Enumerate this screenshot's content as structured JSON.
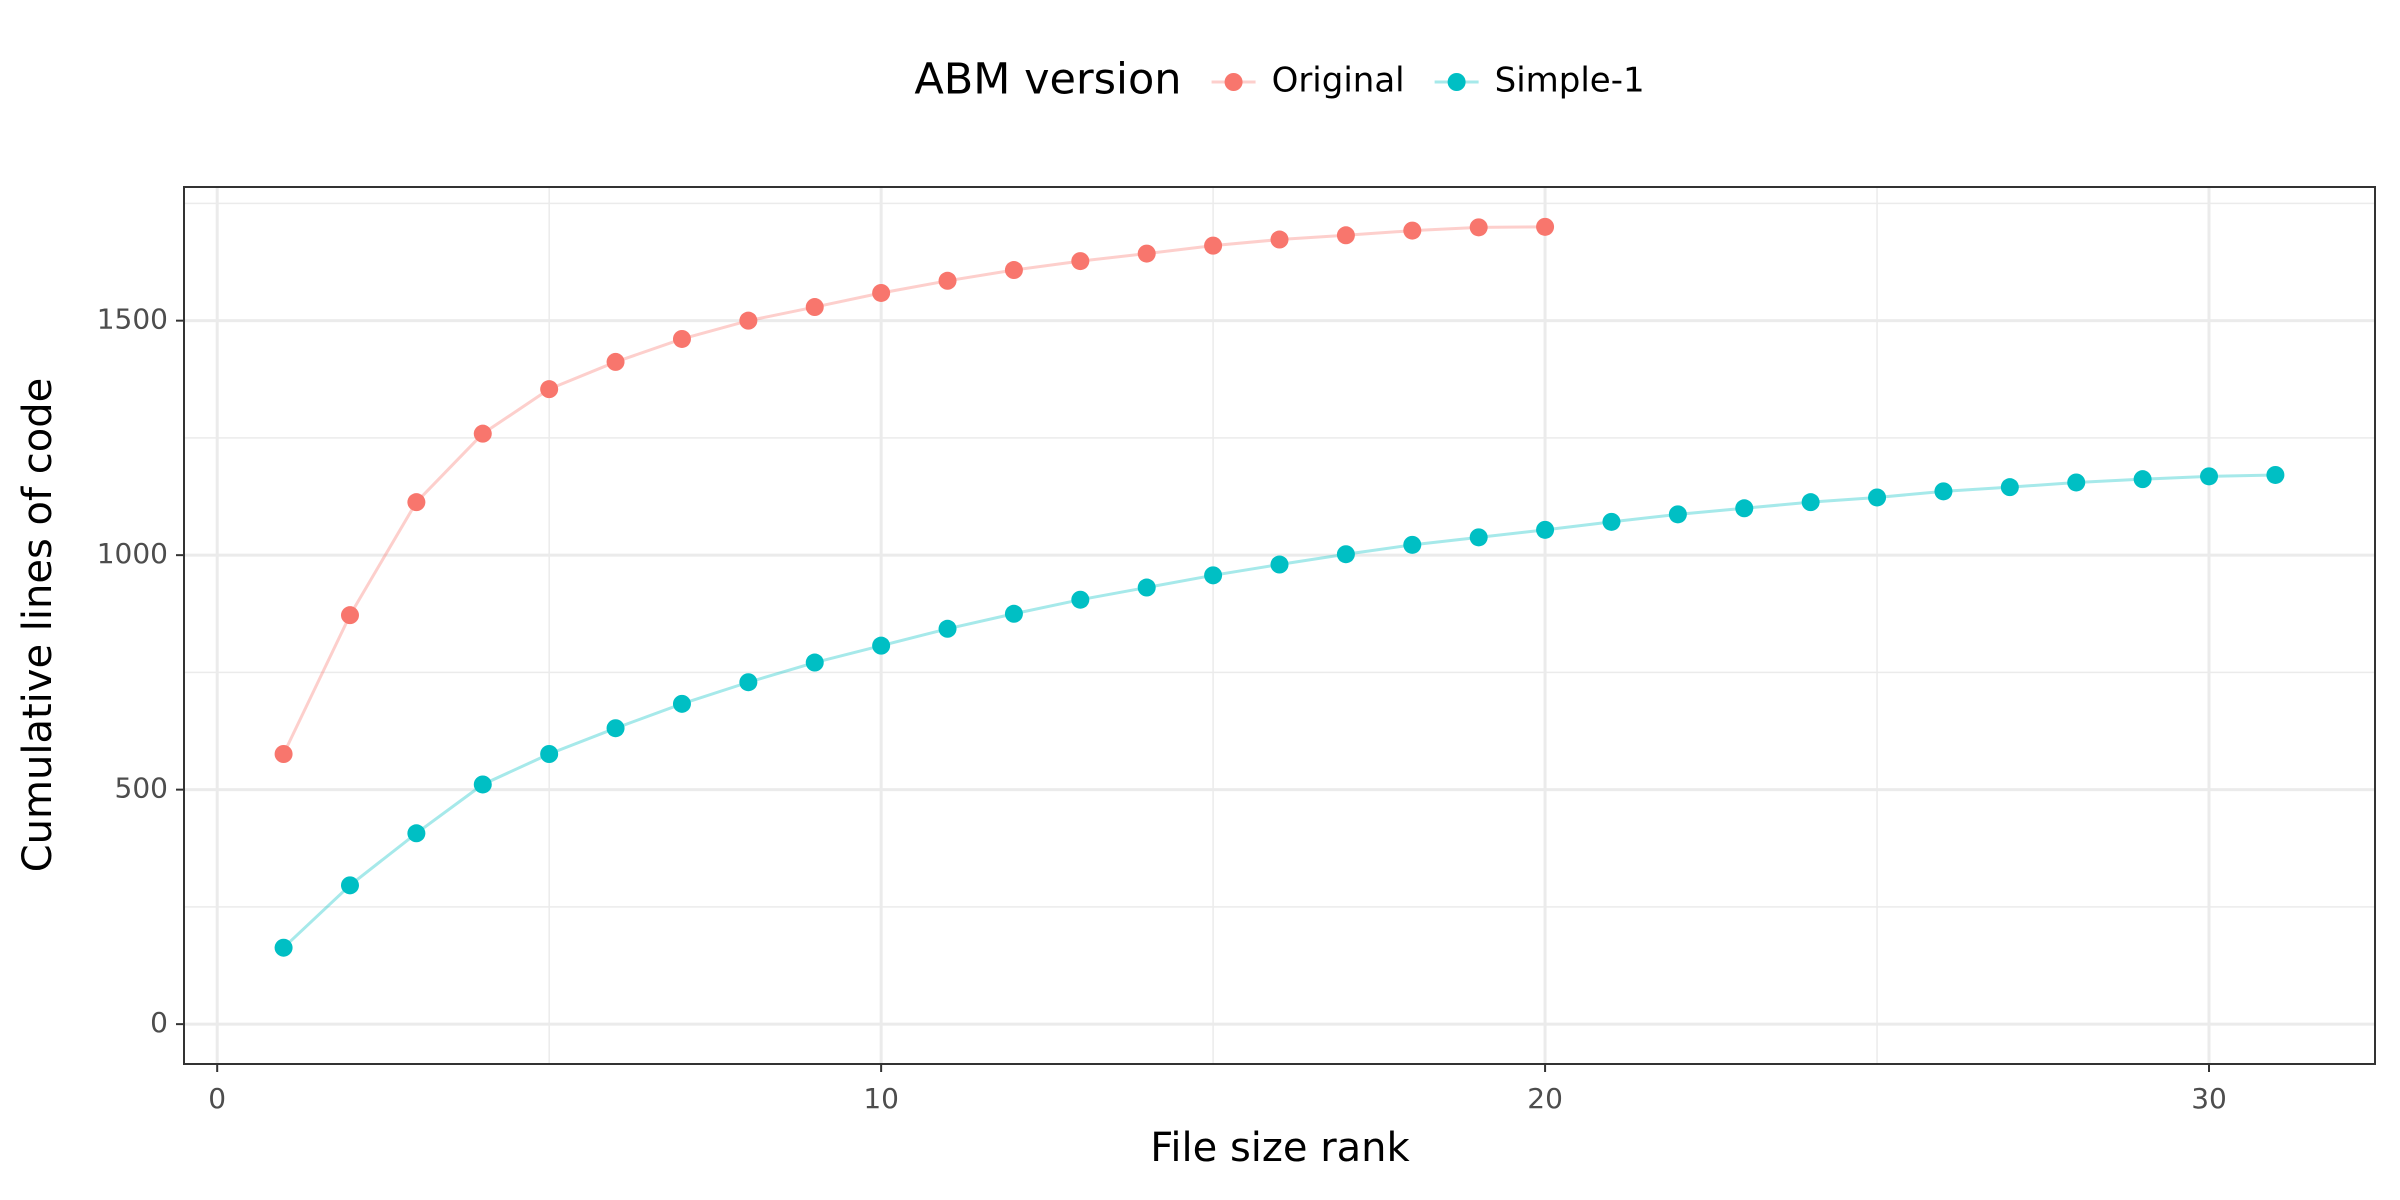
{
  "chart_data": {
    "type": "line",
    "xlabel": "File size rank",
    "ylabel": "Cumulative lines of code",
    "legend_title": "ABM version",
    "legend_position": "top",
    "xlim": [
      -0.5,
      32.5
    ],
    "xticks": [
      0,
      10,
      20,
      30
    ],
    "x_minor_ticks": [
      5,
      15,
      25
    ],
    "ylim": [
      -85,
      1785
    ],
    "yticks": [
      0,
      500,
      1000,
      1500
    ],
    "y_minor_ticks": [
      250,
      750,
      1250,
      1750
    ],
    "grid": true,
    "series": [
      {
        "name": "Original",
        "color": "#F8766D",
        "x": [
          1,
          2,
          3,
          4,
          5,
          6,
          7,
          8,
          9,
          10,
          11,
          12,
          13,
          14,
          15,
          16,
          17,
          18,
          19,
          20
        ],
        "values": [
          576,
          872,
          1113,
          1259,
          1354,
          1412,
          1461,
          1500,
          1529,
          1559,
          1585,
          1608,
          1627,
          1643,
          1660,
          1673,
          1682,
          1692,
          1699,
          1700
        ]
      },
      {
        "name": "Simple-1",
        "color": "#00BFC4",
        "x": [
          1,
          2,
          3,
          4,
          5,
          6,
          7,
          8,
          9,
          10,
          11,
          12,
          13,
          14,
          15,
          16,
          17,
          18,
          19,
          20,
          21,
          22,
          23,
          24,
          25,
          26,
          27,
          28,
          29,
          30,
          31
        ],
        "values": [
          163,
          296,
          407,
          511,
          576,
          631,
          683,
          729,
          771,
          807,
          843,
          875,
          905,
          931,
          957,
          980,
          1002,
          1022,
          1038,
          1054,
          1071,
          1087,
          1100,
          1113,
          1123,
          1136,
          1145,
          1155,
          1162,
          1168,
          1171
        ]
      }
    ]
  }
}
